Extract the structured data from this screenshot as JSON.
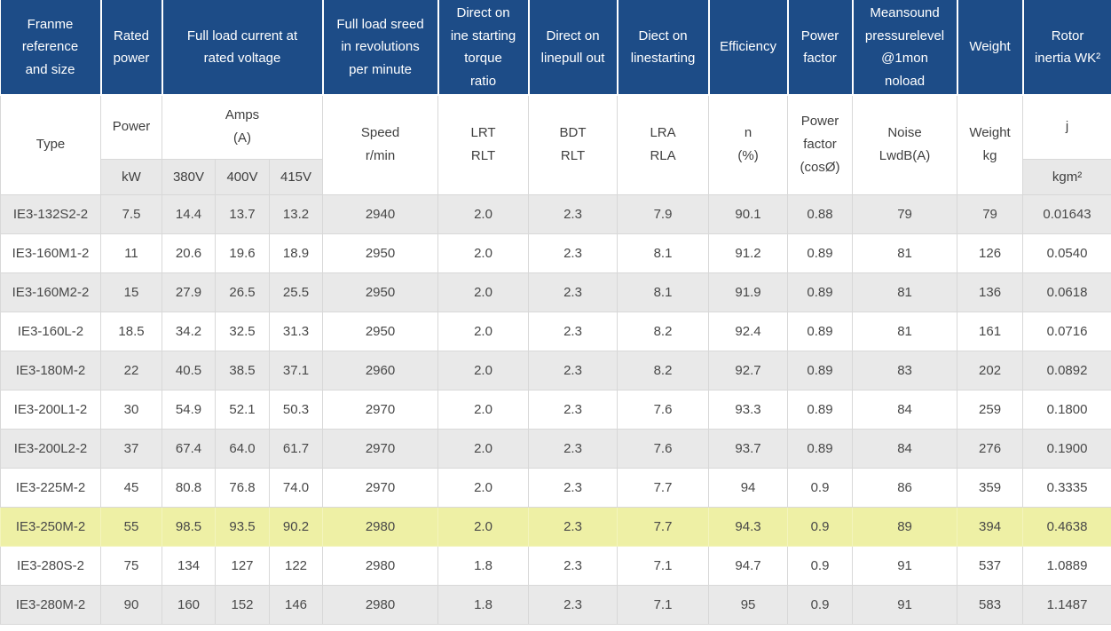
{
  "colors": {
    "header_bg": "#1d4c87",
    "header_text": "#ffffff",
    "alt_row_bg": "#e9e9e9",
    "unit_row_bg": "#e8e8e8",
    "highlight_bg": "#eef0a5",
    "border": "#d8d8d8",
    "body_text": "#484848"
  },
  "header": {
    "group": [
      "Franme\nreference\nand size",
      "Rated\npower",
      "Full load current at\nrated voltage",
      "Full load sreed\nin revolutions\nper minute",
      "Direct on\nine starting\ntorque\nratio",
      "Direct on\nlinepull out",
      "Diect on\nlinestarting",
      "Efficiency",
      "Power\nfactor",
      "Meansound\npressurelevel\n@1mon\nnoload",
      "Weight",
      "Rotor\ninertia WK²"
    ],
    "sub": [
      "Type",
      "Power",
      "Amps\n(A)",
      "Speed\nr/min",
      "LRT\nRLT",
      "BDT\nRLT",
      "LRA\nRLA",
      "n\n(%)",
      "Power\nfactor\n(cosØ)",
      "Noise\nLwdB(A)",
      "Weight\nkg",
      "j"
    ],
    "units": [
      "kW",
      "380V",
      "400V",
      "415V",
      "kgm²"
    ]
  },
  "rows": [
    {
      "type": "IE3-132S2-2",
      "values": [
        "7.5",
        "14.4",
        "13.7",
        "13.2",
        "2940",
        "2.0",
        "2.3",
        "7.9",
        "90.1",
        "0.88",
        "79",
        "79",
        "0.01643"
      ],
      "highlight": false
    },
    {
      "type": "IE3-160M1-2",
      "values": [
        "11",
        "20.6",
        "19.6",
        "18.9",
        "2950",
        "2.0",
        "2.3",
        "8.1",
        "91.2",
        "0.89",
        "81",
        "126",
        "0.0540"
      ],
      "highlight": false
    },
    {
      "type": "IE3-160M2-2",
      "values": [
        "15",
        "27.9",
        "26.5",
        "25.5",
        "2950",
        "2.0",
        "2.3",
        "8.1",
        "91.9",
        "0.89",
        "81",
        "136",
        "0.0618"
      ],
      "highlight": false
    },
    {
      "type": "IE3-160L-2",
      "values": [
        "18.5",
        "34.2",
        "32.5",
        "31.3",
        "2950",
        "2.0",
        "2.3",
        "8.2",
        "92.4",
        "0.89",
        "81",
        "161",
        "0.0716"
      ],
      "highlight": false
    },
    {
      "type": "IE3-180M-2",
      "values": [
        "22",
        "40.5",
        "38.5",
        "37.1",
        "2960",
        "2.0",
        "2.3",
        "8.2",
        "92.7",
        "0.89",
        "83",
        "202",
        "0.0892"
      ],
      "highlight": false
    },
    {
      "type": "IE3-200L1-2",
      "values": [
        "30",
        "54.9",
        "52.1",
        "50.3",
        "2970",
        "2.0",
        "2.3",
        "7.6",
        "93.3",
        "0.89",
        "84",
        "259",
        "0.1800"
      ],
      "highlight": false
    },
    {
      "type": "IE3-200L2-2",
      "values": [
        "37",
        "67.4",
        "64.0",
        "61.7",
        "2970",
        "2.0",
        "2.3",
        "7.6",
        "93.7",
        "0.89",
        "84",
        "276",
        "0.1900"
      ],
      "highlight": false
    },
    {
      "type": "IE3-225M-2",
      "values": [
        "45",
        "80.8",
        "76.8",
        "74.0",
        "2970",
        "2.0",
        "2.3",
        "7.7",
        "94",
        "0.9",
        "86",
        "359",
        "0.3335"
      ],
      "highlight": false
    },
    {
      "type": "IE3-250M-2",
      "values": [
        "55",
        "98.5",
        "93.5",
        "90.2",
        "2980",
        "2.0",
        "2.3",
        "7.7",
        "94.3",
        "0.9",
        "89",
        "394",
        "0.4638"
      ],
      "highlight": true
    },
    {
      "type": "IE3-280S-2",
      "values": [
        "75",
        "134",
        "127",
        "122",
        "2980",
        "1.8",
        "2.3",
        "7.1",
        "94.7",
        "0.9",
        "91",
        "537",
        "1.0889"
      ],
      "highlight": false
    },
    {
      "type": "IE3-280M-2",
      "values": [
        "90",
        "160",
        "152",
        "146",
        "2980",
        "1.8",
        "2.3",
        "7.1",
        "95",
        "0.9",
        "91",
        "583",
        "1.1487"
      ],
      "highlight": false
    }
  ]
}
